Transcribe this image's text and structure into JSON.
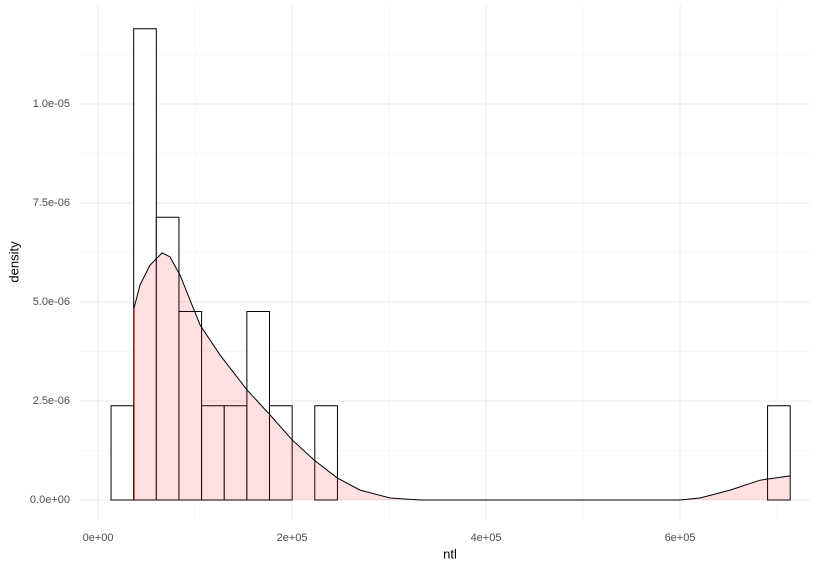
{
  "chart_data": {
    "type": "histogram",
    "x_label": "ntl",
    "y_label": "density",
    "bins": [
      13400,
      36740,
      60080,
      83420,
      106760,
      130100,
      153440,
      176780,
      200120,
      223460,
      246800,
      270140,
      293480,
      316820,
      340160,
      363500,
      386840,
      410180,
      433520,
      456860,
      480200,
      503540,
      526880,
      550220,
      573560,
      596900,
      620240,
      643580,
      666920,
      690260,
      713600
    ],
    "values": [
      2.38e-06,
      1.19e-05,
      7.14e-06,
      4.76e-06,
      2.38e-06,
      2.38e-06,
      4.76e-06,
      2.38e-06,
      0,
      2.38e-06,
      0,
      0,
      0,
      0,
      0,
      0,
      0,
      0,
      0,
      0,
      0,
      0,
      0,
      0,
      0,
      0,
      0,
      0,
      0,
      2.38e-06
    ],
    "color": "#ffffff",
    "edge_color": "#000000",
    "density": {
      "x": [
        37100,
        43300,
        53600,
        66000,
        74200,
        84500,
        105200,
        125800,
        153600,
        177300,
        200000,
        222700,
        246400,
        270100,
        301100,
        332000,
        600000,
        620600,
        651600,
        682500,
        713500
      ],
      "y": [
        4.85e-06,
        5.43e-06,
        5.93e-06,
        6.24e-06,
        6.14e-06,
        5.68e-06,
        4.42e-06,
        3.66e-06,
        2.78e-06,
        2.15e-06,
        1.52e-06,
        1.01e-06,
        5.6e-07,
        2.5e-07,
        5e-08,
        0,
        0,
        5e-08,
        2.5e-07,
        5e-07,
        6.1e-07
      ],
      "color": "rgba(255,0,0,0.12)"
    },
    "xlim": [
      -18600,
      734000
    ],
    "ylim": [
      -5.05e-07,
      1.25e-05
    ],
    "xticks": [
      {
        "value": 0,
        "label": "0e+00"
      },
      {
        "value": 200000,
        "label": "2e+05"
      },
      {
        "value": 400000,
        "label": "4e+05"
      },
      {
        "value": 600000,
        "label": "6e+05"
      }
    ],
    "yticks": [
      {
        "value": 0,
        "label": "0.0e+00"
      },
      {
        "value": 2.5e-06,
        "label": "2.5e-06"
      },
      {
        "value": 5e-06,
        "label": "5.0e-06"
      },
      {
        "value": 7.5e-06,
        "label": "7.5e-06"
      },
      {
        "value": 1e-05,
        "label": "1.0e-05"
      }
    ],
    "grid": true
  }
}
